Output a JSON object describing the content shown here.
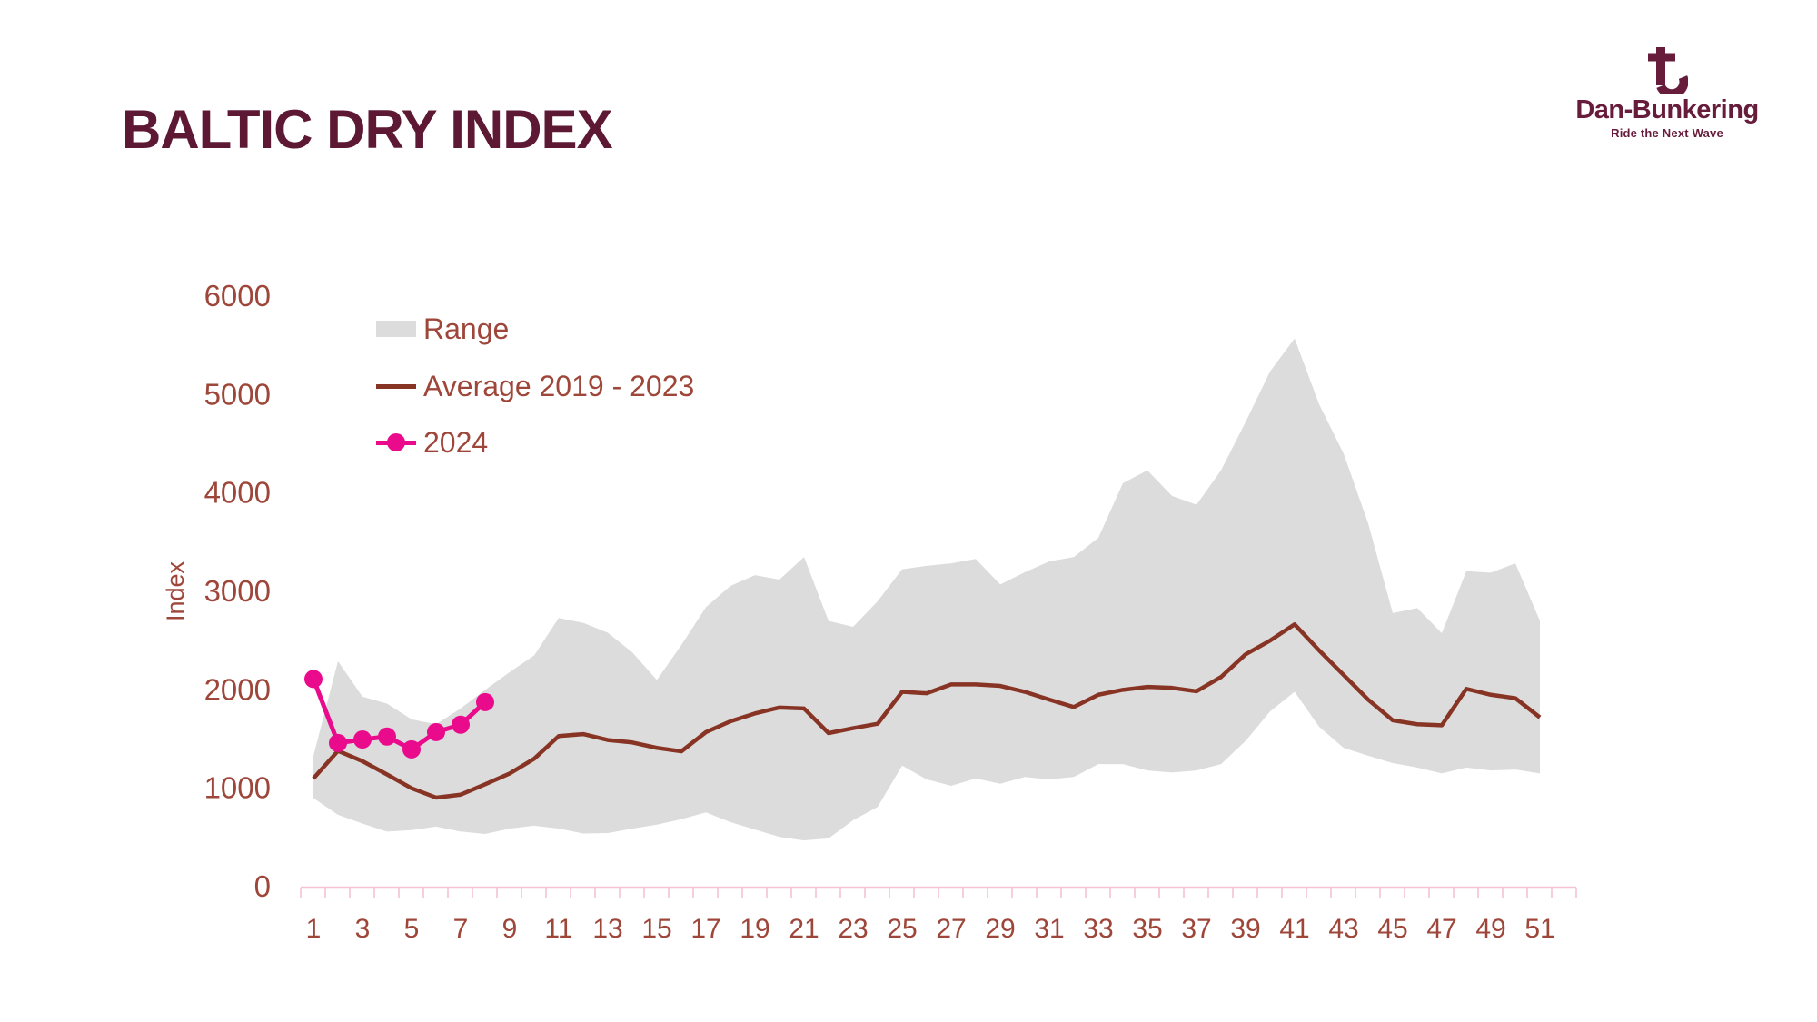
{
  "header": {
    "title": "BALTIC DRY INDEX"
  },
  "logo": {
    "name": "Dan-Bunkering",
    "tagline": "Ride the Next Wave",
    "icon": "anchor-b-icon"
  },
  "legend": {
    "items": [
      {
        "id": "range",
        "label": "Range"
      },
      {
        "id": "average",
        "label": "Average 2019 - 2023"
      },
      {
        "id": "y2024",
        "label": "2024"
      }
    ]
  },
  "colors": {
    "title_maroon": "#5d1834",
    "logo_maroon": "#671c3b",
    "axis_text": "#9e463a",
    "average_line": "#883425",
    "series_2024": "#e90b8c",
    "range_band": "#dcdcdc",
    "axis_line_pink": "#f4c3d4"
  },
  "chart_data": {
    "type": "line",
    "title": "BALTIC DRY INDEX",
    "xlabel": "",
    "ylabel": "Index",
    "ylim": [
      0,
      6000
    ],
    "yticks": [
      0,
      1000,
      2000,
      3000,
      4000,
      5000,
      6000
    ],
    "xticks": [
      1,
      3,
      5,
      7,
      9,
      11,
      13,
      15,
      17,
      19,
      21,
      23,
      25,
      27,
      29,
      31,
      33,
      35,
      37,
      39,
      41,
      43,
      45,
      47,
      49,
      51
    ],
    "grid": false,
    "legend_position": "top-left",
    "x_weeks": [
      1,
      2,
      3,
      4,
      5,
      6,
      7,
      8,
      9,
      10,
      11,
      12,
      13,
      14,
      15,
      16,
      17,
      18,
      19,
      20,
      21,
      22,
      23,
      24,
      25,
      26,
      27,
      28,
      29,
      30,
      31,
      32,
      33,
      34,
      35,
      36,
      37,
      38,
      39,
      40,
      41,
      42,
      43,
      44,
      45,
      46,
      47,
      48,
      49,
      50,
      51
    ],
    "series": [
      {
        "name": "Range",
        "role": "band",
        "values_min": [
          900,
          730,
          640,
          560,
          575,
          610,
          560,
          535,
          590,
          620,
          590,
          540,
          545,
          590,
          630,
          685,
          755,
          655,
          580,
          505,
          470,
          490,
          675,
          810,
          1230,
          1090,
          1025,
          1100,
          1045,
          1115,
          1090,
          1115,
          1245,
          1245,
          1180,
          1160,
          1180,
          1245,
          1480,
          1780,
          1980,
          1625,
          1410,
          1330,
          1255,
          1210,
          1150,
          1210,
          1180,
          1190,
          1150
        ],
        "values_max": [
          1330,
          2290,
          1930,
          1860,
          1700,
          1650,
          1810,
          2000,
          2180,
          2350,
          2730,
          2680,
          2580,
          2380,
          2100,
          2455,
          2840,
          3055,
          3165,
          3120,
          3350,
          2700,
          2640,
          2900,
          3225,
          3260,
          3285,
          3330,
          3070,
          3195,
          3305,
          3350,
          3545,
          4100,
          4230,
          3970,
          3880,
          4230,
          4720,
          5235,
          5570,
          4900,
          4400,
          3690,
          2780,
          2830,
          2575,
          3205,
          3190,
          3285,
          2700
        ]
      },
      {
        "name": "Average 2019 - 2023",
        "role": "line",
        "values": [
          1100,
          1380,
          1275,
          1140,
          1000,
          905,
          935,
          1040,
          1150,
          1300,
          1530,
          1550,
          1490,
          1465,
          1410,
          1375,
          1570,
          1680,
          1760,
          1820,
          1810,
          1560,
          1610,
          1655,
          1980,
          1965,
          2055,
          2055,
          2040,
          1980,
          1900,
          1825,
          1950,
          2000,
          2030,
          2020,
          1985,
          2130,
          2360,
          2500,
          2665,
          2400,
          2150,
          1900,
          1690,
          1650,
          1640,
          2010,
          1950,
          1915,
          1720
        ]
      },
      {
        "name": "2024",
        "role": "line-markers",
        "x": [
          1,
          2,
          3,
          4,
          5,
          6,
          7,
          8
        ],
        "values": [
          2110,
          1460,
          1495,
          1525,
          1395,
          1570,
          1645,
          1875
        ]
      }
    ]
  }
}
